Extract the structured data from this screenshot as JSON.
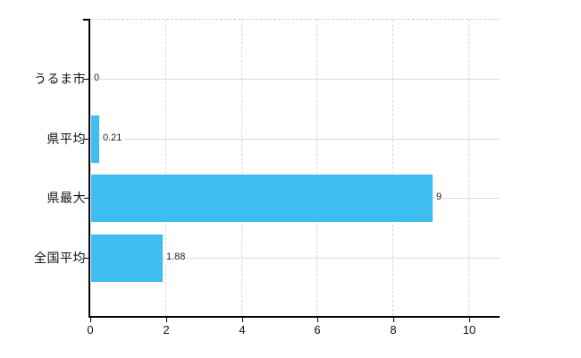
{
  "chart_data": {
    "type": "bar",
    "orientation": "horizontal",
    "title": "",
    "categories": [
      "うるま市",
      "県平均",
      "県最大",
      "全国平均"
    ],
    "values": [
      0,
      0.21,
      9,
      1.88
    ],
    "value_labels": [
      "0",
      "0.21",
      "9",
      "1.88"
    ],
    "x_ticks": [
      "0",
      "2",
      "4",
      "6",
      "8",
      "10"
    ],
    "x_tick_values": [
      0,
      2,
      4,
      6,
      8,
      10
    ],
    "xlim": [
      0,
      10.8
    ],
    "ylabel": "",
    "xlabel": "",
    "grid": true,
    "legend": false,
    "bar_color": "#3ebdf0"
  },
  "colors": {
    "background": "#ffffff",
    "bar": "#3ebdf0",
    "axis": "#000000",
    "grid_horizontal": "#d9ddd9",
    "grid_vertical": "#d3d8d3",
    "top_border_dashed": "#cfcfd9",
    "text": "#222222"
  }
}
